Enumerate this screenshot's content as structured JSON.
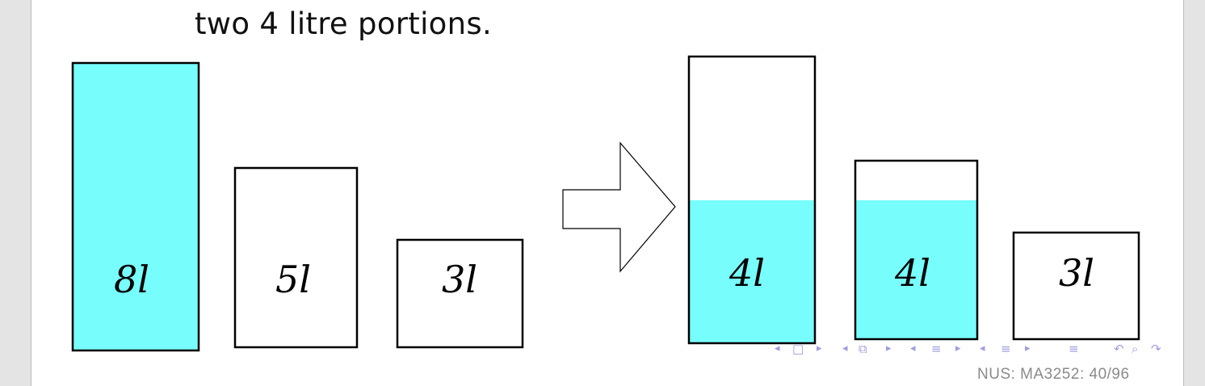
{
  "slide": {
    "text": "two 4 litre portions.",
    "footer": "NUS: MA3252: 40/96"
  },
  "colors": {
    "water": "#78fdfd",
    "outline": "#000000",
    "nav": "#9e9ee0",
    "footer": "#8a8a8a"
  },
  "before": [
    {
      "label": "8l",
      "num": "8",
      "unit": "l",
      "capacity": 8,
      "content": 8
    },
    {
      "label": "5l",
      "num": "5",
      "unit": "l",
      "capacity": 5,
      "content": 0
    },
    {
      "label": "3l",
      "num": "3",
      "unit": "l",
      "capacity": 3,
      "content": 0
    }
  ],
  "after": [
    {
      "label": "4l",
      "num": "4",
      "unit": "l",
      "capacity": 8,
      "content": 4
    },
    {
      "label": "4l",
      "num": "4",
      "unit": "l",
      "capacity": 5,
      "content": 4
    },
    {
      "label": "3l",
      "num": "3",
      "unit": "l",
      "capacity": 3,
      "content": 0
    }
  ],
  "nav_icons": [
    "nav-prev-frame-icon",
    "nav-frame-icon",
    "nav-next-frame-icon",
    "nav-prev-subsection-icon",
    "nav-subsection-icon",
    "nav-next-subsection-icon",
    "nav-prev-section-icon",
    "nav-section-icon",
    "nav-next-section-icon",
    "nav-prev-slide-icon",
    "nav-slide-icon",
    "nav-next-slide-icon",
    "nav-align-icon",
    "nav-back-icon",
    "nav-search-icon",
    "nav-forward-icon"
  ]
}
